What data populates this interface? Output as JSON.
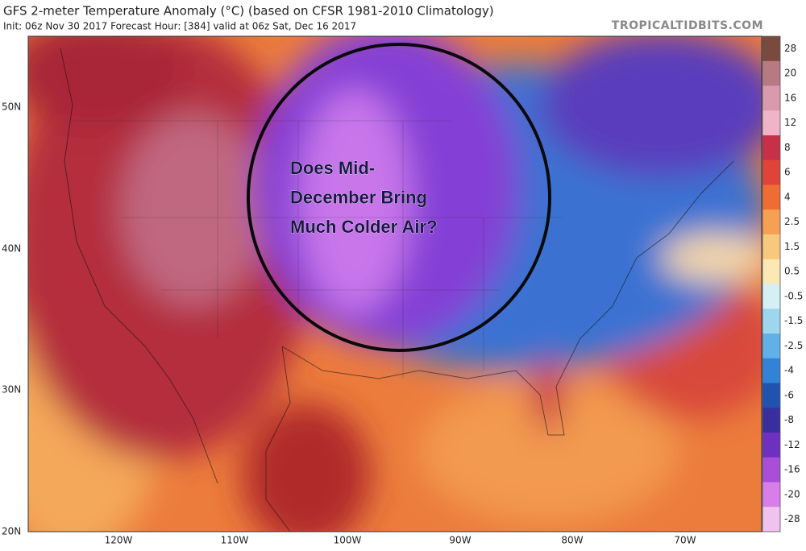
{
  "header": {
    "title": "GFS 2-meter Temperature Anomaly (°C) (based on CFSR 1981-2010 Climatology)",
    "subtitle": "Init: 06z Nov 30 2017   Forecast Hour: [384]   valid at 06z Sat, Dec 16 2017",
    "site": "TROPICALTIDBITS.COM"
  },
  "map": {
    "annotation": [
      "Does Mid-",
      "December Bring",
      "Much Colder Air?"
    ],
    "lat_labels": [
      "50N",
      "40N",
      "30N",
      "20N"
    ],
    "lon_labels": [
      "120W",
      "110W",
      "100W",
      "90W",
      "80W",
      "70W"
    ]
  },
  "colorbar": {
    "levels": [
      28,
      20,
      16,
      12,
      8,
      6,
      4,
      2.5,
      1.5,
      0.5,
      -0.5,
      -1.5,
      -2.5,
      -4,
      -6,
      -8,
      -12,
      -16,
      -20,
      -28
    ],
    "colors": [
      "#7a4a3e",
      "#b87a82",
      "#d99aae",
      "#efb4c8",
      "#c8304a",
      "#e04438",
      "#ef6c34",
      "#f5a052",
      "#f8c97c",
      "#fbe8b4",
      "#d4f0f4",
      "#9ed6ee",
      "#62b0e8",
      "#3282d8",
      "#2052b0",
      "#3a2e9e",
      "#6e30c0",
      "#a84ed8",
      "#d87ee8",
      "#f0c2ee"
    ]
  }
}
